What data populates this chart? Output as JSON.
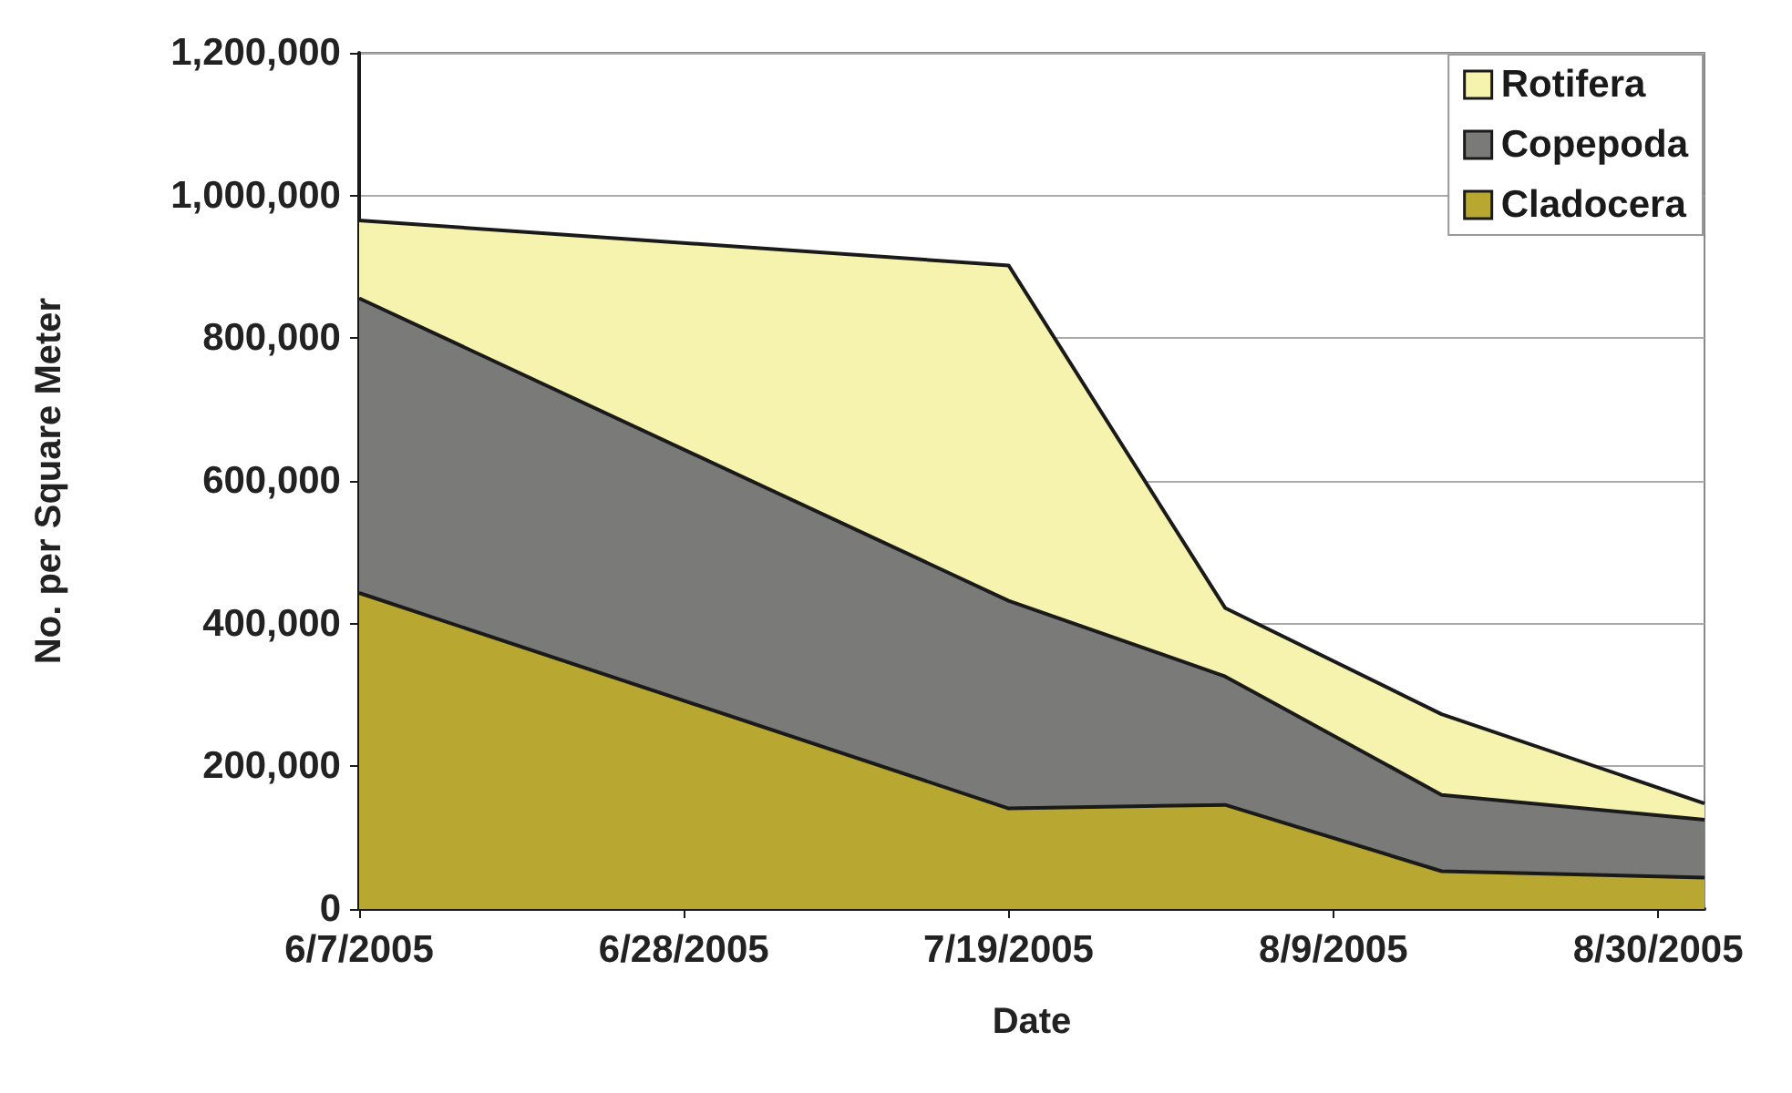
{
  "chart_data": {
    "type": "area",
    "stacked": true,
    "xlabel": "Date",
    "ylabel": "No. per Square Meter",
    "x": [
      "2005-06-07",
      "2005-07-19",
      "2005-08-02",
      "2005-08-16",
      "2005-09-02"
    ],
    "series": [
      {
        "name": "Cladocera",
        "color": "#b8a832",
        "values": [
          443000,
          141000,
          146000,
          53000,
          44000
        ]
      },
      {
        "name": "Copepoda",
        "color": "#7a7b78",
        "values": [
          413000,
          291000,
          180000,
          107000,
          81000
        ]
      },
      {
        "name": "Rotifera",
        "color": "#f5f3ae",
        "values": [
          109000,
          470000,
          96000,
          113000,
          23000
        ]
      }
    ],
    "xlim": [
      "2005-06-07",
      "2005-09-02"
    ],
    "xticks": [
      {
        "value": "2005-06-07",
        "label": "6/7/2005"
      },
      {
        "value": "2005-06-28",
        "label": "6/28/2005"
      },
      {
        "value": "2005-07-19",
        "label": "7/19/2005"
      },
      {
        "value": "2005-08-09",
        "label": "8/9/2005"
      },
      {
        "value": "2005-08-30",
        "label": "8/30/2005"
      }
    ],
    "ylim": [
      0,
      1200000
    ],
    "yticks": [
      {
        "value": 0,
        "label": "0"
      },
      {
        "value": 200000,
        "label": "200,000"
      },
      {
        "value": 400000,
        "label": "400,000"
      },
      {
        "value": 600000,
        "label": "600,000"
      },
      {
        "value": 800000,
        "label": "800,000"
      },
      {
        "value": 1000000,
        "label": "1,000,000"
      },
      {
        "value": 1200000,
        "label": "1,200,000"
      }
    ],
    "grid": "y",
    "legend": "top right"
  }
}
